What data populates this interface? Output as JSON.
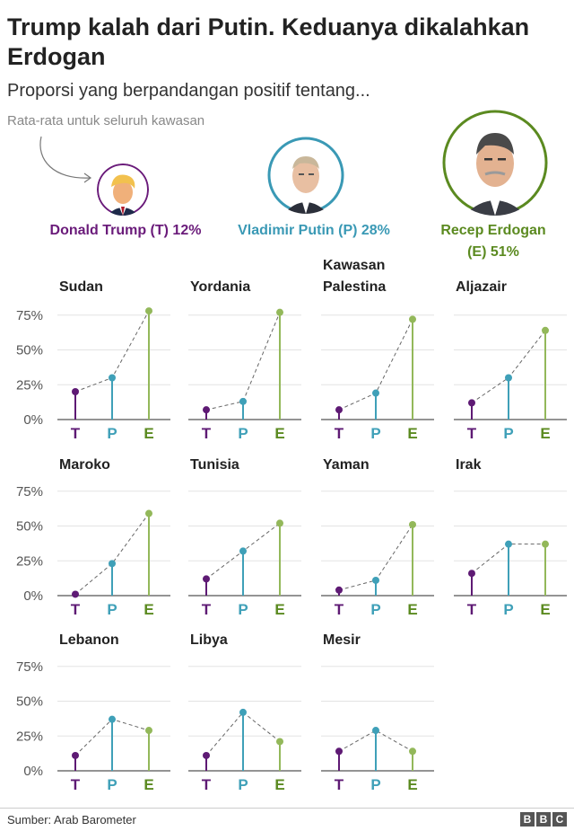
{
  "title": "Trump kalah dari Putin. Keduanya dikalahkan Erdogan",
  "subtitle": "Proporsi yang berpandangan positif tentang...",
  "note": "Rata-rata untuk seluruh kawasan",
  "leaders": [
    {
      "key": "T",
      "label": "Donald Trump (T) 12%",
      "color": "#6a1b7a"
    },
    {
      "key": "P",
      "label": "Vladimir Putin (P) 28%",
      "color": "#3a99b5"
    },
    {
      "key": "E",
      "label_line1": "Recep Erdogan",
      "label_line2": "(E) 51%",
      "color": "#5b8a20"
    }
  ],
  "colors": {
    "T": "#5e1a74",
    "P": "#3fa0b8",
    "E": "#93b85a",
    "E_letter": "#5b8a20"
  },
  "source": "Sumber: Arab Barometer",
  "logo": [
    "B",
    "B",
    "C"
  ],
  "chart_data": {
    "type": "line",
    "categories": [
      "T",
      "P",
      "E"
    ],
    "y_ticks": [
      "0%",
      "25%",
      "50%",
      "75%"
    ],
    "ylim": [
      0,
      80
    ],
    "grid": true,
    "panels": [
      {
        "name": "Sudan",
        "values": [
          20,
          30,
          78
        ]
      },
      {
        "name": "Yordania",
        "values": [
          7,
          13,
          77
        ]
      },
      {
        "name": "Kawasan Palestina",
        "name_lines": [
          "Kawasan",
          "Palestina"
        ],
        "values": [
          7,
          19,
          72
        ]
      },
      {
        "name": "Aljazair",
        "values": [
          12,
          30,
          64
        ]
      },
      {
        "name": "Maroko",
        "values": [
          1,
          23,
          59
        ]
      },
      {
        "name": "Tunisia",
        "values": [
          12,
          32,
          52
        ]
      },
      {
        "name": "Yaman",
        "values": [
          4,
          11,
          51
        ]
      },
      {
        "name": "Irak",
        "values": [
          16,
          37,
          37
        ]
      },
      {
        "name": "Lebanon",
        "values": [
          11,
          37,
          29
        ]
      },
      {
        "name": "Libya",
        "values": [
          11,
          42,
          21
        ]
      },
      {
        "name": "Mesir",
        "values": [
          14,
          29,
          14
        ]
      }
    ]
  }
}
